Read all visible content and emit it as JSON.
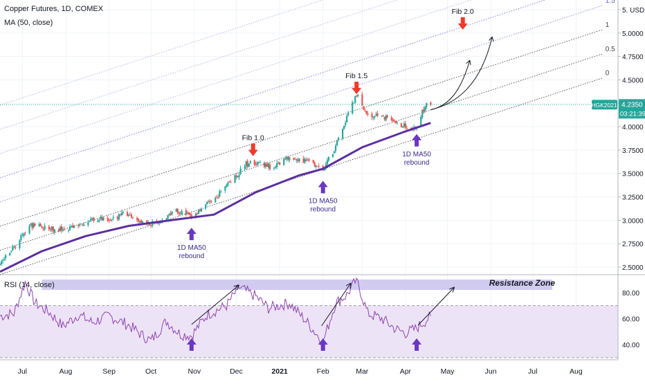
{
  "header": {
    "title": "Copper Futures, 1D, COMEX",
    "ma_label": "MA (50, close)"
  },
  "rsi_panel": {
    "label": "RSI (14, close)",
    "resistance_label": "Resistance Zone"
  },
  "axis": {
    "currency": "USD",
    "price_ticks": [
      2.5,
      2.75,
      3.0,
      3.25,
      3.5,
      3.75,
      4.0,
      4.25,
      4.5,
      4.75,
      5.0,
      5.25
    ],
    "price_tick_labels": [
      "2.5000",
      "2.7500",
      "3.0000",
      "3.2500",
      "3.5000",
      "3.7500",
      "4.0000",
      "4.2500",
      "4.5000",
      "4.7500",
      "5.0000",
      "5. USD"
    ],
    "rsi_ticks": [
      40,
      60,
      80
    ],
    "rsi_tick_labels": [
      "40.00",
      "60.00",
      "80.00"
    ],
    "time_labels": [
      "Jul",
      "Aug",
      "Sep",
      "Oct",
      "Nov",
      "Dec",
      "2021",
      "Feb",
      "Mar",
      "Apr",
      "May",
      "Jun",
      "Jul",
      "Aug"
    ]
  },
  "price_tag": {
    "symbol": "HGK2021",
    "price": "4.2350",
    "countdown": "03:21:39"
  },
  "colors": {
    "up": "#26a69a",
    "down": "#ef5350",
    "ma": "#5b2fa0",
    "rsi": "#8e44ad",
    "rsi_band": "#ede3f7",
    "resistance": "#c9c3ec",
    "fib_arrow": "#f0392b",
    "rebound_arrow": "#6a38c2",
    "tag": "#26a69a"
  },
  "annotations": {
    "fib_labels": [
      "Fib 1.0",
      "Fib 1.5",
      "Fib 2.0"
    ],
    "rebound_label_line1": "1D MA50",
    "rebound_label_line2": "rebound"
  },
  "chart_data": [
    {
      "type": "line",
      "title": "Copper Futures, 1D, COMEX",
      "ylabel": "USD",
      "ylim": [
        2.45,
        5.3
      ],
      "price_anchors": [
        [
          "2020-06-15",
          2.56
        ],
        [
          "2020-06-25",
          2.7
        ],
        [
          "2020-07-06",
          2.94
        ],
        [
          "2020-07-15",
          2.93
        ],
        [
          "2020-07-27",
          2.9
        ],
        [
          "2020-08-10",
          2.92
        ],
        [
          "2020-08-20",
          3.01
        ],
        [
          "2020-09-01",
          3.02
        ],
        [
          "2020-09-15",
          3.08
        ],
        [
          "2020-09-25",
          2.98
        ],
        [
          "2020-10-05",
          2.97
        ],
        [
          "2020-10-20",
          3.1
        ],
        [
          "2020-10-30",
          3.03
        ],
        [
          "2020-11-10",
          3.18
        ],
        [
          "2020-11-20",
          3.3
        ],
        [
          "2020-12-01",
          3.48
        ],
        [
          "2020-12-08",
          3.6
        ],
        [
          "2020-12-17",
          3.62
        ],
        [
          "2020-12-28",
          3.56
        ],
        [
          "2021-01-08",
          3.68
        ],
        [
          "2021-01-20",
          3.63
        ],
        [
          "2021-02-01",
          3.54
        ],
        [
          "2021-02-10",
          3.79
        ],
        [
          "2021-02-18",
          4.1
        ],
        [
          "2021-02-25",
          4.35
        ],
        [
          "2021-03-05",
          4.1
        ],
        [
          "2021-03-15",
          4.12
        ],
        [
          "2021-03-25",
          4.04
        ],
        [
          "2021-04-01",
          4.01
        ],
        [
          "2021-04-08",
          3.98
        ],
        [
          "2021-04-15",
          4.22
        ],
        [
          "2021-04-19",
          4.235
        ]
      ],
      "series": [
        {
          "name": "MA (50, close)",
          "points": [
            [
              "2020-06-15",
              2.45
            ],
            [
              "2020-07-15",
              2.67
            ],
            [
              "2020-08-15",
              2.83
            ],
            [
              "2020-09-15",
              2.94
            ],
            [
              "2020-10-15",
              3.0
            ],
            [
              "2020-11-15",
              3.06
            ],
            [
              "2020-12-15",
              3.3
            ],
            [
              "2021-01-15",
              3.48
            ],
            [
              "2021-02-01",
              3.55
            ],
            [
              "2021-03-01",
              3.78
            ],
            [
              "2021-04-01",
              3.95
            ],
            [
              "2021-04-19",
              4.04
            ]
          ]
        }
      ],
      "fib_channel_levels": [
        "0",
        "0.5",
        "1",
        "1.5",
        "2"
      ],
      "last_price": 4.235
    },
    {
      "type": "line",
      "title": "RSI (14, close)",
      "ylim": [
        29,
        93
      ],
      "series": [
        {
          "name": "RSI (14, close)",
          "points": [
            [
              "2020-06-15",
              62
            ],
            [
              "2020-06-25",
              64
            ],
            [
              "2020-07-03",
              88
            ],
            [
              "2020-07-10",
              72
            ],
            [
              "2020-07-20",
              65
            ],
            [
              "2020-07-30",
              54
            ],
            [
              "2020-08-10",
              63
            ],
            [
              "2020-08-20",
              57
            ],
            [
              "2020-09-01",
              62
            ],
            [
              "2020-09-15",
              55
            ],
            [
              "2020-09-25",
              47
            ],
            [
              "2020-10-01",
              43
            ],
            [
              "2020-10-12",
              58
            ],
            [
              "2020-10-22",
              48
            ],
            [
              "2020-10-30",
              47
            ],
            [
              "2020-11-10",
              63
            ],
            [
              "2020-11-24",
              70
            ],
            [
              "2020-12-03",
              84
            ],
            [
              "2020-12-15",
              77
            ],
            [
              "2020-12-24",
              68
            ],
            [
              "2021-01-08",
              72
            ],
            [
              "2021-01-20",
              58
            ],
            [
              "2021-02-01",
              42
            ],
            [
              "2021-02-10",
              72
            ],
            [
              "2021-02-18",
              78
            ],
            [
              "2021-02-25",
              90
            ],
            [
              "2021-03-05",
              64
            ],
            [
              "2021-03-15",
              60
            ],
            [
              "2021-03-25",
              52
            ],
            [
              "2021-04-01",
              49
            ],
            [
              "2021-04-08",
              52
            ],
            [
              "2021-04-15",
              58
            ],
            [
              "2021-04-19",
              62
            ]
          ]
        }
      ],
      "band": [
        30,
        70
      ],
      "resistance_zone": [
        82,
        90
      ]
    }
  ]
}
